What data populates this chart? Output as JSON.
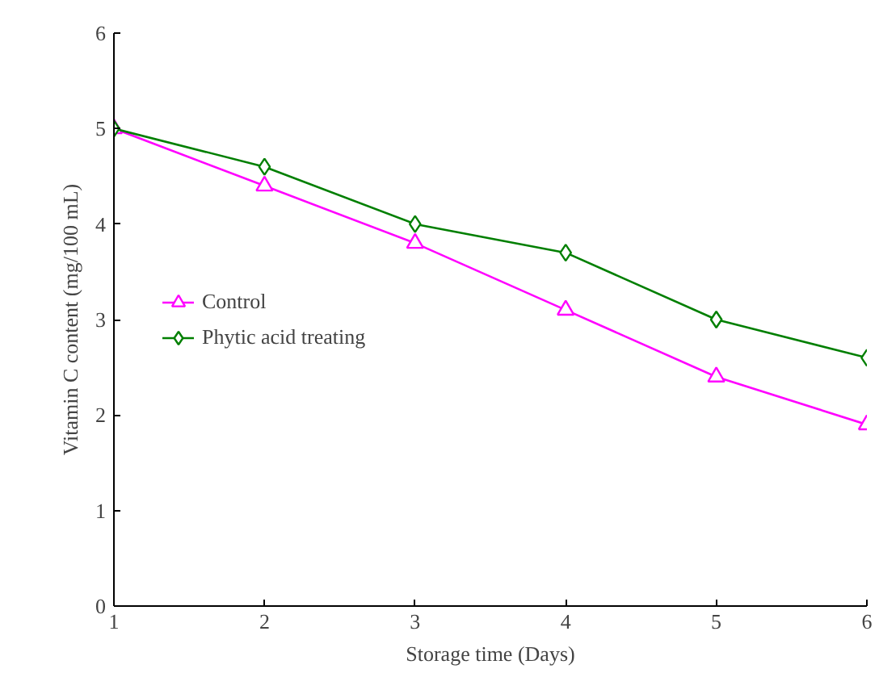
{
  "chart_data": {
    "type": "line",
    "xlabel": "Storage time (Days)",
    "ylabel": "Vitamin C content (mg/100 mL)",
    "x": [
      1,
      2,
      3,
      4,
      5,
      6
    ],
    "series": [
      {
        "name": "Control",
        "color": "#ff00ff",
        "marker": "triangle",
        "values": [
          5,
          4.4,
          3.8,
          3.1,
          2.4,
          1.9
        ]
      },
      {
        "name": "Phytic acid treating",
        "color": "#007f00",
        "marker": "diamond",
        "values": [
          5,
          4.6,
          4.0,
          3.7,
          3.0,
          2.6
        ]
      }
    ],
    "xlim": [
      1,
      6
    ],
    "xticks": [
      1,
      2,
      3,
      4,
      5,
      6
    ],
    "ylim": [
      0,
      6
    ],
    "yticks": [
      0,
      1,
      2,
      3,
      4,
      5,
      6
    ],
    "grid": false,
    "legend": "left",
    "line_style": "solid"
  }
}
